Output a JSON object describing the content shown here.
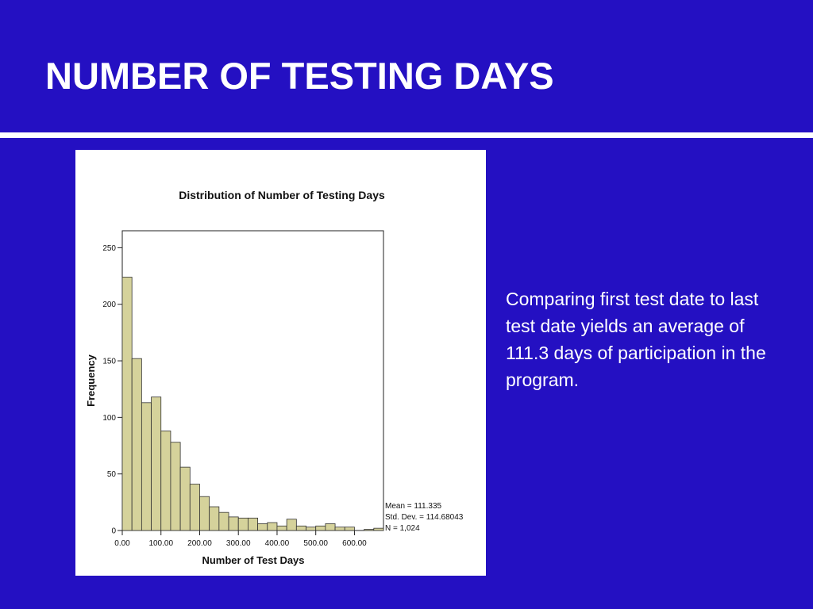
{
  "slide": {
    "title": "NUMBER OF TESTING DAYS",
    "caption": "Comparing first test date to last test date yields an average of 111.3 days of participation in the program."
  },
  "colors": {
    "background": "#2410c2",
    "bar_fill": "#d5d29b",
    "bar_stroke": "#333333"
  },
  "chart_data": {
    "type": "bar",
    "title": "Distribution of Number of Testing Days",
    "xlabel": "Number of Test Days",
    "ylabel": "Frequency",
    "bin_width": 25,
    "xlim": [
      0,
      675
    ],
    "ylim": [
      0,
      265
    ],
    "x_ticks": [
      "0.00",
      "100.00",
      "200.00",
      "300.00",
      "400.00",
      "500.00",
      "600.00"
    ],
    "x_tick_values": [
      0,
      100,
      200,
      300,
      400,
      500,
      600
    ],
    "y_ticks": [
      0,
      50,
      100,
      150,
      200,
      250
    ],
    "bins_start": [
      0,
      25,
      50,
      75,
      100,
      125,
      150,
      175,
      200,
      225,
      250,
      275,
      300,
      325,
      350,
      375,
      400,
      425,
      450,
      475,
      500,
      525,
      550,
      575,
      600,
      625,
      650
    ],
    "values": [
      224,
      152,
      113,
      118,
      88,
      78,
      56,
      41,
      30,
      21,
      16,
      12,
      11,
      11,
      6,
      7,
      4,
      10,
      4,
      3,
      4,
      6,
      3,
      3,
      0,
      1,
      2
    ],
    "stats": [
      "Mean = 111.335",
      "Std. Dev. = 114.68043",
      "N = 1,024"
    ],
    "grid": false,
    "legend": "none"
  }
}
